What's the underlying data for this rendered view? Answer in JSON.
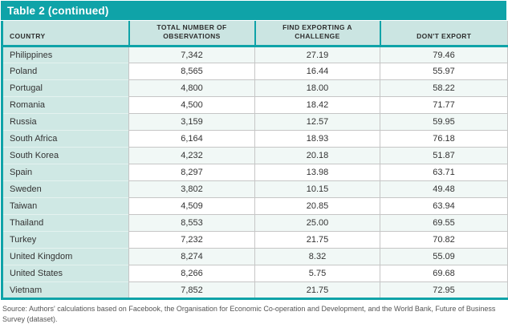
{
  "title": "Table 2 (continued)",
  "columns": {
    "country": "COUNTRY",
    "observations": "TOTAL NUMBER OF OBSERVATIONS",
    "challenge": "FIND EXPORTING A CHALLENGE",
    "dont_export": "DON'T EXPORT"
  },
  "rows": [
    {
      "country": "Philippines",
      "observations": "7,342",
      "challenge": "27.19",
      "dont_export": "79.46"
    },
    {
      "country": "Poland",
      "observations": "8,565",
      "challenge": "16.44",
      "dont_export": "55.97"
    },
    {
      "country": "Portugal",
      "observations": "4,800",
      "challenge": "18.00",
      "dont_export": "58.22"
    },
    {
      "country": "Romania",
      "observations": "4,500",
      "challenge": "18.42",
      "dont_export": "71.77"
    },
    {
      "country": "Russia",
      "observations": "3,159",
      "challenge": "12.57",
      "dont_export": "59.95"
    },
    {
      "country": "South Africa",
      "observations": "6,164",
      "challenge": "18.93",
      "dont_export": "76.18"
    },
    {
      "country": "South Korea",
      "observations": "4,232",
      "challenge": "20.18",
      "dont_export": "51.87"
    },
    {
      "country": "Spain",
      "observations": "8,297",
      "challenge": "13.98",
      "dont_export": "63.71"
    },
    {
      "country": "Sweden",
      "observations": "3,802",
      "challenge": "10.15",
      "dont_export": "49.48"
    },
    {
      "country": "Taiwan",
      "observations": "4,509",
      "challenge": "20.85",
      "dont_export": "63.94"
    },
    {
      "country": "Thailand",
      "observations": "8,553",
      "challenge": "25.00",
      "dont_export": "69.55"
    },
    {
      "country": "Turkey",
      "observations": "7,232",
      "challenge": "21.75",
      "dont_export": "70.82"
    },
    {
      "country": "United Kingdom",
      "observations": "8,274",
      "challenge": "8.32",
      "dont_export": "55.09"
    },
    {
      "country": "United States",
      "observations": "8,266",
      "challenge": "5.75",
      "dont_export": "69.68"
    },
    {
      "country": "Vietnam",
      "observations": "7,852",
      "challenge": "21.75",
      "dont_export": "72.95"
    }
  ],
  "source": "Source: Authors' calculations based on Facebook, the Organisation for Economic Co-operation and Development, and the World Bank, Future of Business Survey (dataset).",
  "colors": {
    "accent_teal": "#0fa3a8",
    "header_bg": "#cbe5e2",
    "country_column_bg": "#cfe8e4",
    "alt_row_bg": "#f1f8f6",
    "separator_gray": "#c6c6c6"
  }
}
